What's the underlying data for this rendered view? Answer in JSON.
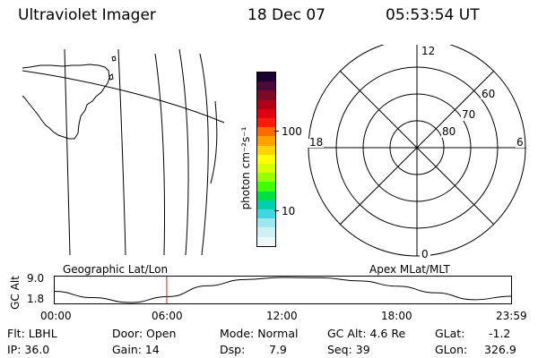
{
  "header": {
    "title": "Ultraviolet Imager",
    "date": "18 Dec 07",
    "time": "05:53:54 UT"
  },
  "colorbar": {
    "unit_label": "photon cm⁻²s⁻¹",
    "tick_100": "100",
    "tick_10": "10",
    "colors_top_to_bottom": [
      "#1a0033",
      "#4b0a3c",
      "#7a0a28",
      "#b00018",
      "#e00012",
      "#ff1a0a",
      "#ff6a00",
      "#ffa000",
      "#ffd200",
      "#ffff00",
      "#d8ff00",
      "#9cff00",
      "#40ff00",
      "#00e040",
      "#00d0b0",
      "#40d8e0",
      "#a0e8f0",
      "#d0f0f8",
      "#eef8fc"
    ]
  },
  "polar": {
    "label_top": "12",
    "label_bottom": "0",
    "label_left": "18",
    "label_right": "6",
    "label_60": "60",
    "label_70": "70",
    "label_80": "80"
  },
  "timeline": {
    "left_label": "Geographic Lat/Lon",
    "right_label": "Apex MLat/MLT",
    "y_axis_title": "GC Alt",
    "y_top": "9.0",
    "y_bottom": "1.8",
    "x_ticks": [
      "00:00",
      "06:00",
      "12:00",
      "18:00",
      "23:59"
    ]
  },
  "chart_data": {
    "type": "line",
    "title": "",
    "xlabel": "",
    "ylabel": "GC Alt",
    "x": [
      "00:00",
      "02:00",
      "04:00",
      "06:00",
      "08:00",
      "10:00",
      "12:00",
      "14:00",
      "16:00",
      "18:00",
      "20:00",
      "22:00",
      "23:59"
    ],
    "series": [
      {
        "values": [
          5.0,
          3.2,
          1.8,
          3.5,
          6.6,
          8.4,
          9.0,
          8.9,
          8.0,
          6.5,
          4.6,
          2.6,
          3.6
        ]
      }
    ],
    "ylim": [
      1.8,
      9.0
    ],
    "x_range": [
      "00:00",
      "23:59"
    ],
    "current_time": "05:53:54"
  },
  "info": {
    "flt": "Flt: LBHL",
    "ip": "IP: 36.0",
    "door": "Door: Open",
    "gain": "Gain: 14",
    "mode": "Mode: Normal",
    "dsp": "Dsp:",
    "dsp_value": "7.9",
    "gc_alt": "GC Alt: 4.6 Re",
    "seq": "Seq: 39",
    "glat_label": "GLat:",
    "glat_value": "-1.2",
    "glon_label": "GLon:",
    "glon_value": "326.9"
  }
}
